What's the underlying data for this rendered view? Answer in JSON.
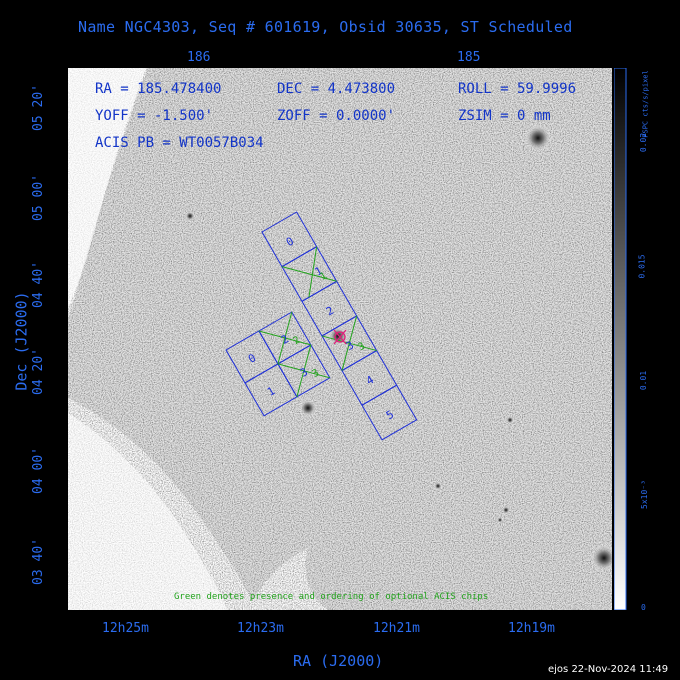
{
  "title": "Name NGC4303, Seq # 601619, Obsid 30635, ST Scheduled",
  "info": {
    "ra": "RA = 185.478400",
    "dec": "DEC = 4.473800",
    "roll": "ROLL = 59.9996",
    "yoff": "YOFF = -1.500'",
    "zoff": "ZOFF = 0.0000'",
    "zsim": "ZSIM = 0 mm",
    "acis": "ACIS PB = WT0057B034"
  },
  "top_ticks": [
    "186",
    "185"
  ],
  "left_ticks": [
    "05 20'",
    "05 00'",
    "04 40'",
    "04 20'",
    "04 00'",
    "03 40'"
  ],
  "bottom_ticks": [
    "12h25m",
    "12h23m",
    "12h21m",
    "12h19m"
  ],
  "ylabel": "Dec (J2000)",
  "xlabel": "RA (J2000)",
  "colorbar": {
    "label": "PSPC cts/s/pixel",
    "ticks": [
      "0.02",
      "0.015",
      "0.01",
      "5x10⁻³",
      "0"
    ]
  },
  "footnote": "Green denotes presence and ordering of optional ACIS chips",
  "stamp": "ejos 22-Nov-2024 11:49",
  "chips_s": [
    "0",
    "1",
    "2",
    "3",
    "4",
    "5"
  ],
  "chips_i": [
    "0",
    "1",
    "2",
    "3"
  ],
  "optional_s": [
    "1",
    "3"
  ],
  "optional_i": [
    "2",
    "3"
  ],
  "colors": {
    "axis_text": "#2b6cf0",
    "chip": "#1e2fd8",
    "optional": "#22a31c",
    "target": "#e0207a",
    "footnote": "#22a31c"
  }
}
